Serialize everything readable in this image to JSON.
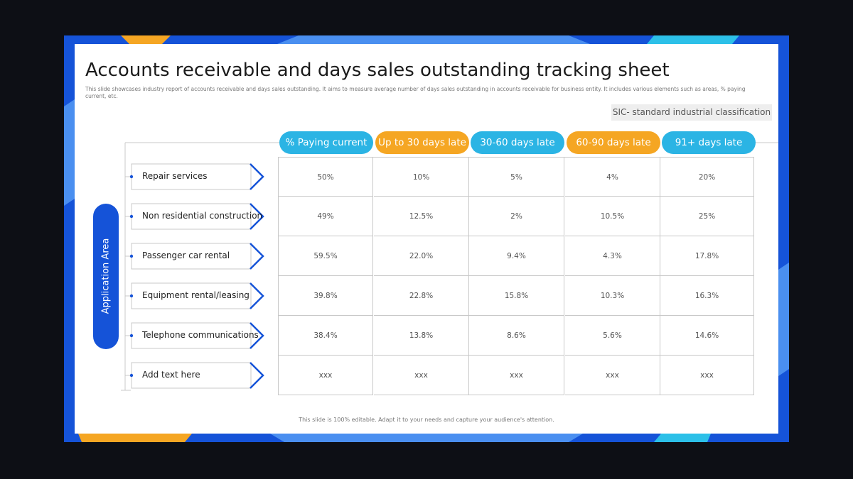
{
  "header": {
    "title": "Accounts receivable and days sales outstanding tracking sheet",
    "subtitle": "This slide showcases industry report of accounts receivable and days sales outstanding. It aims to measure average number of days sales outstanding in accounts receivable for business entity. It includes various elements such as areas, % paying current, etc.",
    "note": "SIC- standard industrial classification"
  },
  "side_label": "Application Area",
  "table": {
    "columns": [
      "% Paying current",
      "Up to 30 days late",
      "30-60 days late",
      "60-90 days late",
      "91+ days late"
    ],
    "rows": [
      {
        "label": "Repair services",
        "cells": [
          "50%",
          "10%",
          "5%",
          "4%",
          "20%"
        ]
      },
      {
        "label": "Non residential construction",
        "cells": [
          "49%",
          "12.5%",
          "2%",
          "10.5%",
          "25%"
        ]
      },
      {
        "label": "Passenger car rental",
        "cells": [
          "59.5%",
          "22.0%",
          "9.4%",
          "4.3%",
          "17.8%"
        ]
      },
      {
        "label": "Equipment rental/leasing",
        "cells": [
          "39.8%",
          "22.8%",
          "15.8%",
          "10.3%",
          "16.3%"
        ]
      },
      {
        "label": "Telephone communications",
        "cells": [
          "38.4%",
          "13.8%",
          "8.6%",
          "5.6%",
          "14.6%"
        ]
      },
      {
        "label": "Add text here",
        "cells": [
          "xxx",
          "xxx",
          "xxx",
          "xxx",
          "xxx"
        ]
      }
    ]
  },
  "footer": "This slide is 100% editable. Adapt it to your needs and capture your audience's attention."
}
